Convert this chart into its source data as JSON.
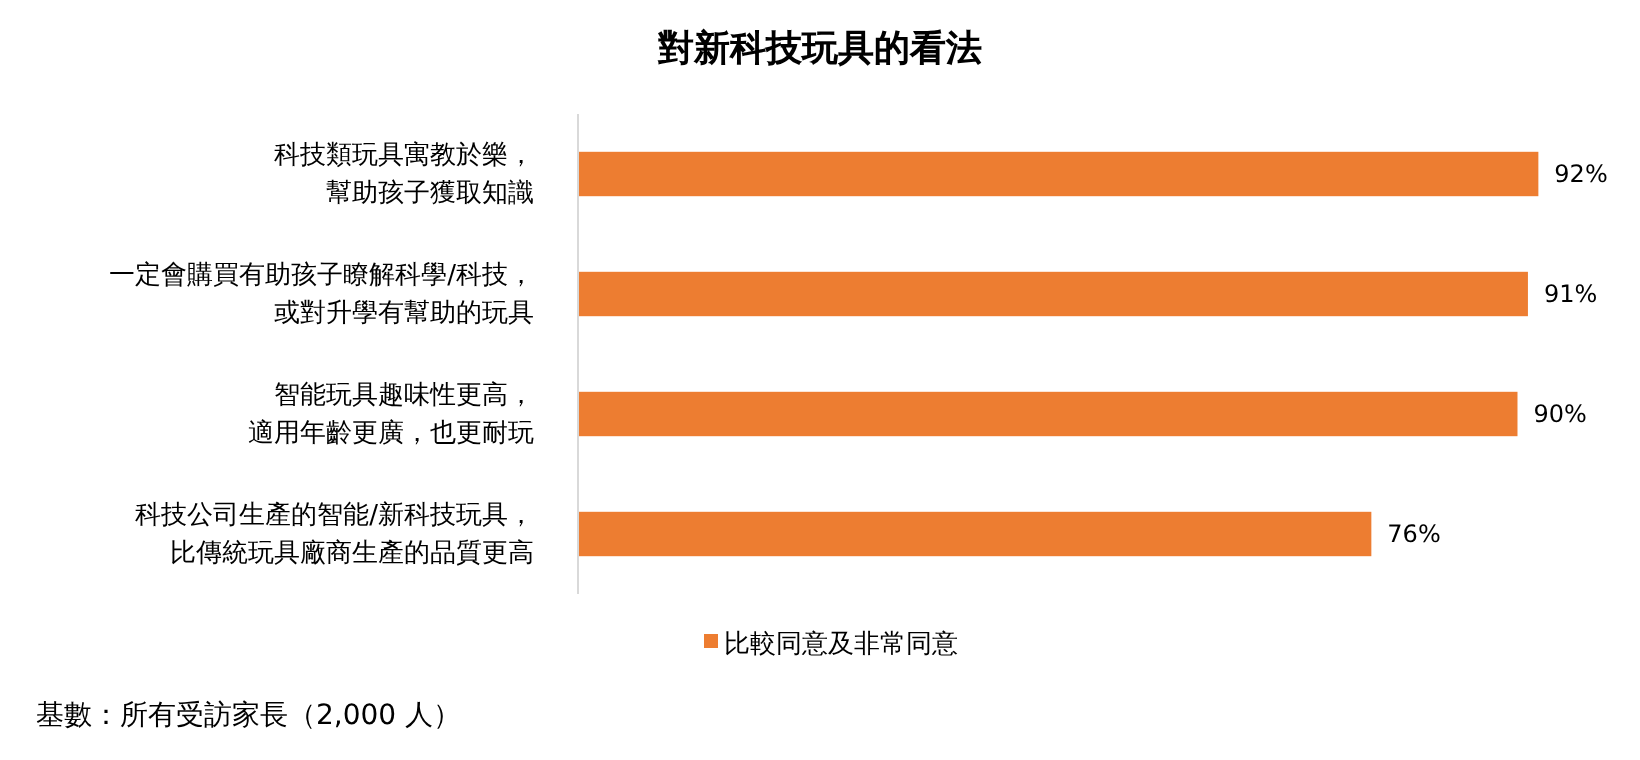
{
  "chart_data": {
    "type": "bar",
    "orientation": "horizontal",
    "title": "對新科技玩具的看法",
    "categories": [
      "科技類玩具寓教於樂，幫助孩子獲取知識",
      "一定會購買有助孩子瞭解科學/科技，或對升學有幫助的玩具",
      "智能玩具趣味性更高，適用年齡更廣，也更耐玩",
      "科技公司生產的智能/新科技玩具，比傳統玩具廠商生產的品質更高"
    ],
    "series": [
      {
        "name": "比較同意及非常同意",
        "color": "#ed7d31",
        "values": [
          92,
          91,
          90,
          76
        ],
        "value_labels": [
          "92%",
          "91%",
          "90%",
          "76%"
        ]
      }
    ],
    "legend": "bottom",
    "annotations": [
      "基數：所有受訪家長（2,000 人）"
    ]
  }
}
